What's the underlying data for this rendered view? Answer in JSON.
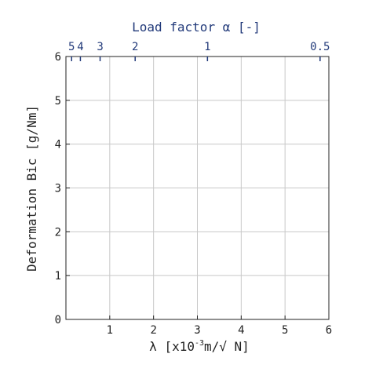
{
  "chart_data": {
    "type": "line",
    "title": "",
    "xlabel": {
      "prefix": "λ [x10",
      "exponent": "-3",
      "suffix": "m/√ N]"
    },
    "ylabel": "Deformation Bic [g/Nm]",
    "x2label": "Load factor α [-]",
    "xlim": [
      0,
      6
    ],
    "ylim": [
      0,
      6
    ],
    "x_ticks": [
      1,
      2,
      3,
      4,
      5,
      6
    ],
    "y_ticks": [
      0,
      1,
      2,
      3,
      4,
      5,
      6
    ],
    "x2_ticks": [
      {
        "label": "5",
        "x": 0.13
      },
      {
        "label": "4",
        "x": 0.33
      },
      {
        "label": "3",
        "x": 0.78
      },
      {
        "label": "2",
        "x": 1.58
      },
      {
        "label": "1",
        "x": 3.23
      },
      {
        "label": "0.5",
        "x": 5.8
      }
    ],
    "grid": true,
    "series": [],
    "colors": {
      "axis": "#222222",
      "grid": "#c8c8c8",
      "top_axis": "#223a7a"
    }
  }
}
